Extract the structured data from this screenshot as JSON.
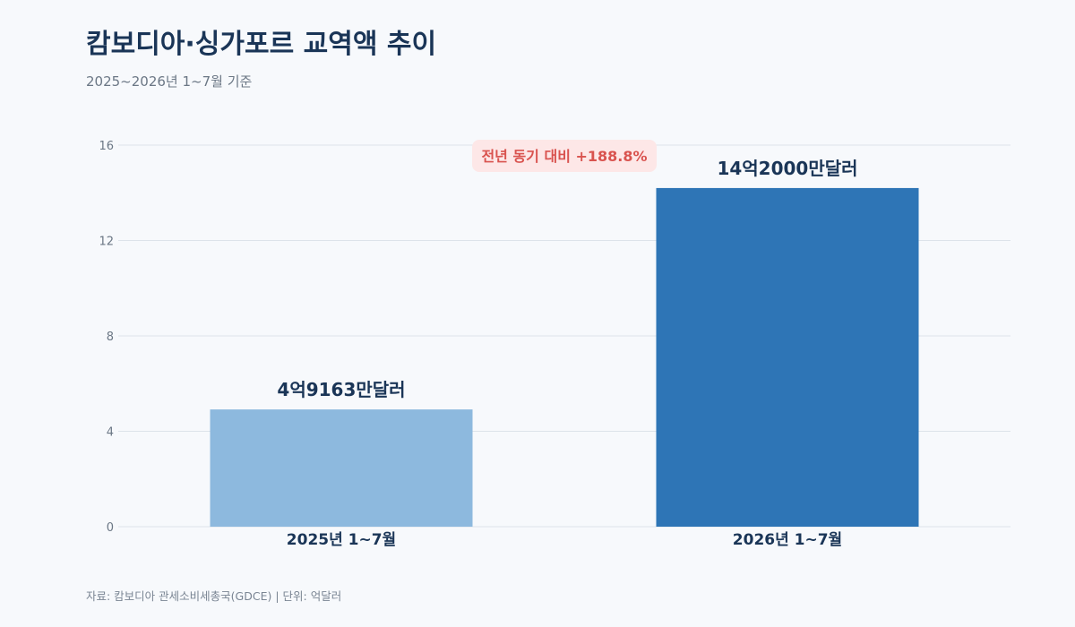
{
  "header": {
    "title": "캄보디아·싱가포르 교역액 추이",
    "subtitle": "2025~2026년 1~7월 기준"
  },
  "footer": {
    "source": "자료: 캄보디아 관세소비세총국(GDCE)  |  단위: 억달러"
  },
  "colors": {
    "bar_2025": "#8db9de",
    "bar_2026": "#2e75b6",
    "text_dark": "#1a3557",
    "axis_text": "#6b7785",
    "grid": "#dde3ea",
    "badge_bg": "#fde7e7",
    "badge_text": "#d9534f"
  },
  "chart_data": {
    "type": "bar",
    "title": "캄보디아·싱가포르 교역액 추이",
    "xlabel": "",
    "ylabel": "",
    "categories": [
      "2025년 1~7월",
      "2026년 1~7월"
    ],
    "values": [
      4.9163,
      14.2
    ],
    "value_labels": [
      "4억9163만달러",
      "14억2000만달러"
    ],
    "ylim": [
      0,
      16
    ],
    "yticks": [
      0,
      4,
      8,
      12,
      16
    ],
    "grid": true,
    "annotation": "전년 동기 대비 +188.8%"
  }
}
